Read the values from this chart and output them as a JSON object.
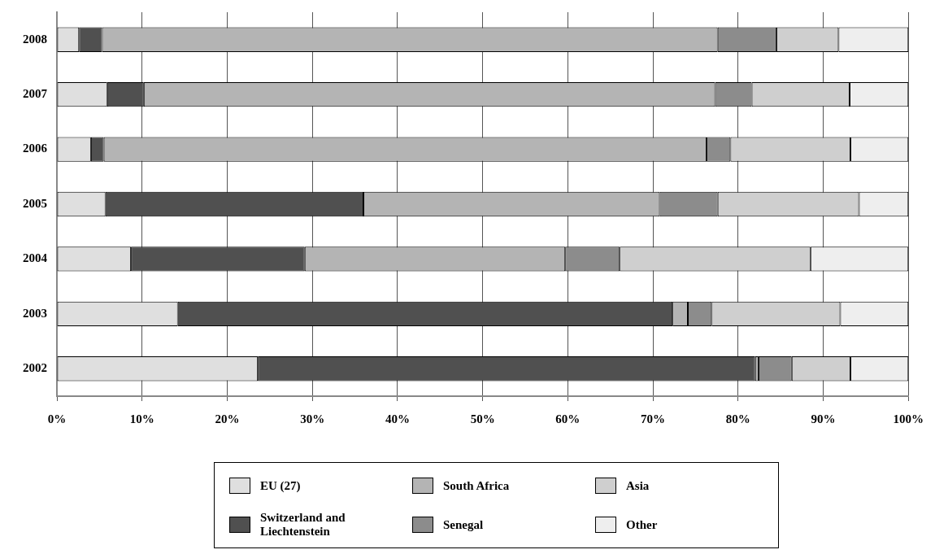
{
  "chart_data": {
    "type": "bar",
    "orientation": "horizontal",
    "stacked": true,
    "categories": [
      "2008",
      "2007",
      "2006",
      "2005",
      "2004",
      "2003",
      "2002"
    ],
    "series": [
      {
        "name": "EU (27)",
        "color": "#dfdfdf",
        "values": [
          2.6,
          5.9,
          4.0,
          5.7,
          8.7,
          14.2,
          23.6
        ]
      },
      {
        "name": "Switzerland and Liechtenstein",
        "color": "#505050",
        "values": [
          2.7,
          4.3,
          1.5,
          30.3,
          20.4,
          58.1,
          58.4
        ]
      },
      {
        "name": "South Africa",
        "color": "#b4b4b4",
        "values": [
          72.3,
          67.1,
          70.8,
          34.8,
          30.6,
          1.8,
          0.4
        ]
      },
      {
        "name": "Senegal",
        "color": "#8c8c8c",
        "values": [
          6.9,
          4.3,
          2.8,
          6.8,
          6.4,
          2.8,
          3.9
        ]
      },
      {
        "name": "Asia",
        "color": "#cfcfcf",
        "values": [
          7.3,
          11.5,
          14.1,
          16.6,
          22.4,
          15.1,
          6.9
        ]
      },
      {
        "name": "Other",
        "color": "#eeeeee",
        "values": [
          8.2,
          6.9,
          6.8,
          5.8,
          11.5,
          8.0,
          6.8
        ]
      }
    ],
    "xlim": [
      0,
      100
    ],
    "xticks": [
      {
        "value": 0,
        "label": "0%"
      },
      {
        "value": 10,
        "label": "10%"
      },
      {
        "value": 20,
        "label": "20%"
      },
      {
        "value": 30,
        "label": "30%"
      },
      {
        "value": 40,
        "label": "40%"
      },
      {
        "value": 50,
        "label": "50%"
      },
      {
        "value": 60,
        "label": "60%"
      },
      {
        "value": 70,
        "label": "70%"
      },
      {
        "value": 80,
        "label": "80%"
      },
      {
        "value": 90,
        "label": "90%"
      },
      {
        "value": 100,
        "label": "100%"
      }
    ],
    "grid": "x",
    "legend": "bottom"
  }
}
